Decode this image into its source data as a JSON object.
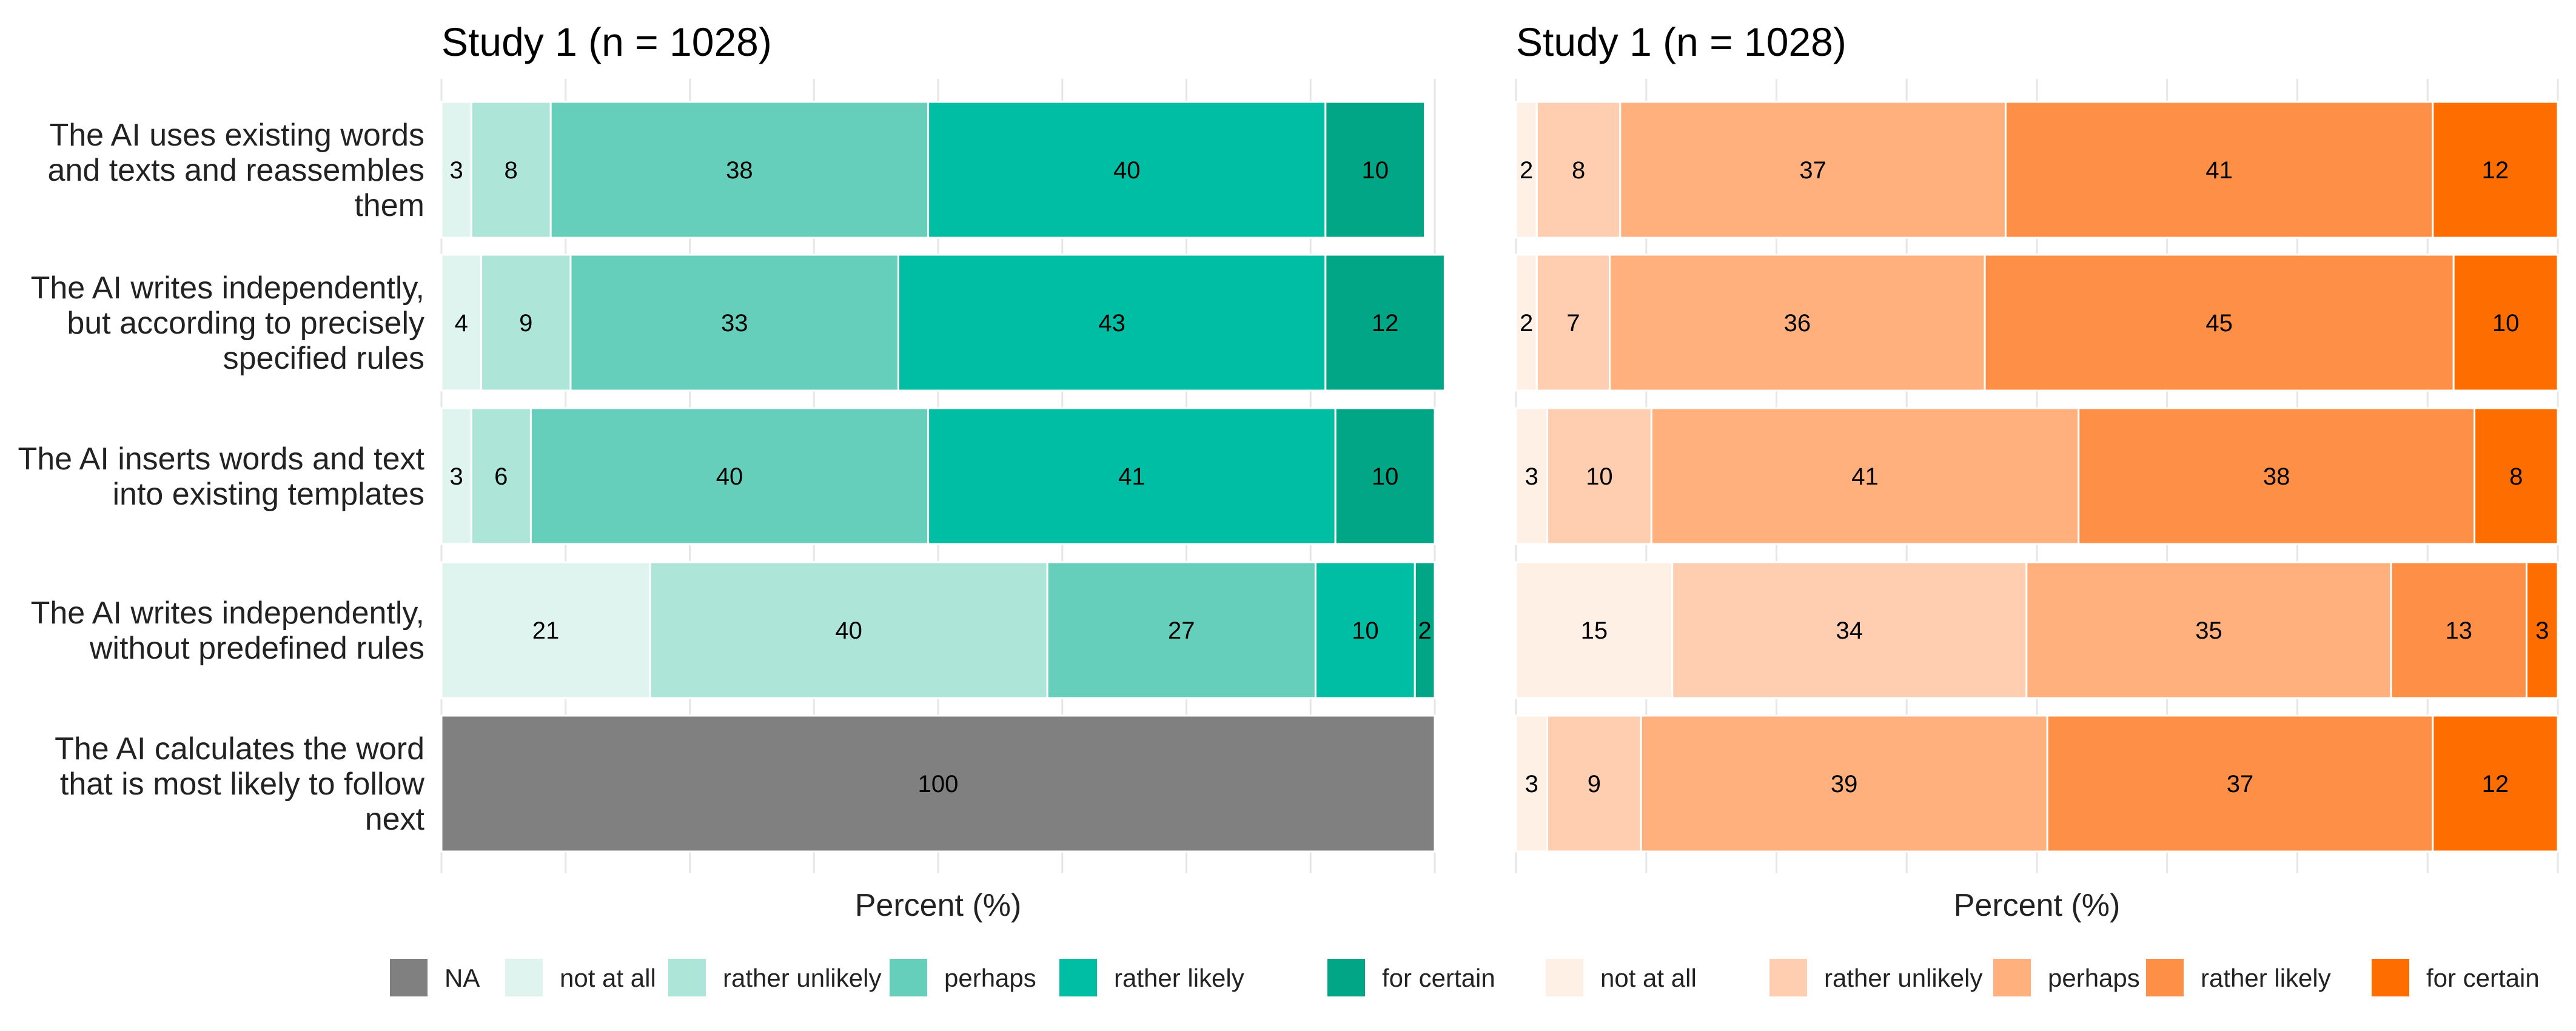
{
  "chart_data": {
    "type": "bar",
    "orientation": "horizontal",
    "stacked": true,
    "categories": [
      [
        "The AI uses existing words",
        "and texts and reassembles",
        "them"
      ],
      [
        "The AI writes independently,",
        "but according to precisely",
        "specified rules"
      ],
      [
        "The AI inserts words and text",
        "into existing templates"
      ],
      [
        "The AI writes independently,",
        "without predefined rules"
      ],
      [
        "The AI calculates the word",
        "that is most likely to follow",
        "next"
      ]
    ],
    "panels": [
      {
        "title": "Study 1 (n = 1028)",
        "xlabel": "Percent (%)",
        "xlim": [
          0,
          100
        ],
        "series": [
          {
            "name": "NA",
            "color": "#808080",
            "values": [
              0,
              0,
              0,
              0,
              100
            ]
          },
          {
            "name": "not at all",
            "color": "#e0f4ef",
            "values": [
              3,
              4,
              3,
              21,
              0
            ]
          },
          {
            "name": "rather unlikely",
            "color": "#ade5d9",
            "values": [
              8,
              9,
              6,
              40,
              0
            ]
          },
          {
            "name": "perhaps",
            "color": "#66cfbb",
            "values": [
              38,
              33,
              40,
              27,
              0
            ]
          },
          {
            "name": "rather likely",
            "color": "#00bea3",
            "values": [
              40,
              43,
              41,
              10,
              0
            ]
          },
          {
            "name": "for certain",
            "color": "#00a686",
            "values": [
              10,
              12,
              10,
              2,
              0
            ]
          }
        ]
      },
      {
        "title": "Study 1 (n = 1028)",
        "xlabel": "Percent (%)",
        "xlim": [
          0,
          100
        ],
        "series": [
          {
            "name": "not at all",
            "color": "#fff0e6",
            "values": [
              2,
              2,
              3,
              15,
              3
            ]
          },
          {
            "name": "rather unlikely",
            "color": "#ffcdb0",
            "values": [
              8,
              7,
              10,
              34,
              9
            ]
          },
          {
            "name": "perhaps",
            "color": "#ffb07d",
            "values": [
              37,
              36,
              41,
              35,
              39
            ]
          },
          {
            "name": "rather likely",
            "color": "#fe8f46",
            "values": [
              41,
              45,
              38,
              13,
              37
            ]
          },
          {
            "name": "for certain",
            "color": "#fe6d00",
            "values": [
              12,
              10,
              8,
              3,
              12
            ]
          }
        ]
      }
    ],
    "legend": {
      "position": "bottom",
      "entries": [
        {
          "name": "NA",
          "color": "#808080"
        },
        {
          "name": "not at all",
          "color": "#e0f4ef"
        },
        {
          "name": "rather unlikely",
          "color": "#ade5d9"
        },
        {
          "name": "perhaps",
          "color": "#66cfbb"
        },
        {
          "name": "rather likely",
          "color": "#00bea3"
        },
        {
          "name": "for certain",
          "color": "#00a686"
        },
        {
          "name": "not at all",
          "color": "#fff0e6"
        },
        {
          "name": "rather unlikely",
          "color": "#ffcdb0"
        },
        {
          "name": "perhaps",
          "color": "#ffb07d"
        },
        {
          "name": "rather likely",
          "color": "#fe8f46"
        },
        {
          "name": "for certain",
          "color": "#fe6d00"
        }
      ]
    },
    "grid": true
  }
}
